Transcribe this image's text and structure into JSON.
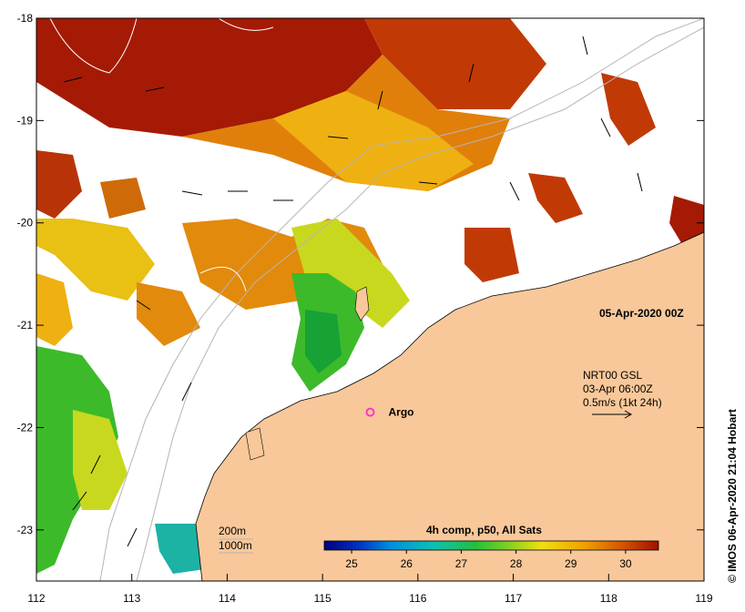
{
  "map": {
    "date_label": "05-Apr-2020 00Z",
    "credit": "© IMOS 06-Apr-2020 21:04 Hobart",
    "x_ticks": [
      "112",
      "113",
      "114",
      "115",
      "116",
      "117",
      "118",
      "119"
    ],
    "y_ticks": [
      "-18",
      "-19",
      "-20",
      "-21",
      "-22",
      "-23"
    ],
    "lon_range": [
      112,
      119
    ],
    "lat_range": [
      -23.5,
      -18
    ],
    "land_color": "#f8c89a",
    "argo": {
      "label": "Argo",
      "lon": 115.5,
      "lat": -21.85,
      "color": "#ff33cc"
    },
    "current_legend": {
      "line1": "NRT00 GSL",
      "line2": "03-Apr 06:00Z",
      "line3": "0.5m/s (1kt 24h)"
    },
    "isobath_legend": {
      "line1": "200m",
      "line2": "1000m"
    },
    "colorbar": {
      "title": "4h comp, p50, All Sats",
      "ticks": [
        "25",
        "26",
        "27",
        "28",
        "29",
        "30"
      ],
      "range": [
        24.5,
        30.6
      ]
    }
  }
}
